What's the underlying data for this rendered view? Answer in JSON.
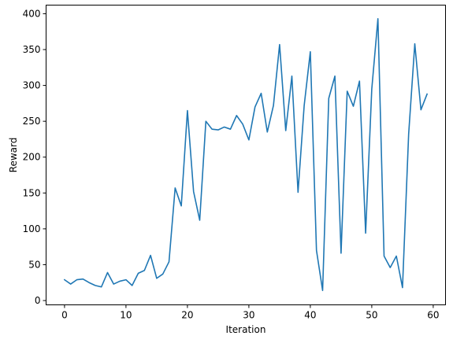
{
  "chart_data": {
    "type": "line",
    "xlabel": "Iteration",
    "ylabel": "Reward",
    "xlim": [
      -3,
      62
    ],
    "ylim": [
      -6,
      412
    ],
    "xticks": [
      0,
      10,
      20,
      30,
      40,
      50,
      60
    ],
    "yticks": [
      0,
      50,
      100,
      150,
      200,
      250,
      300,
      350,
      400
    ],
    "grid": false,
    "legend": "none",
    "series": [
      {
        "color": "#1f77b4",
        "x": [
          0,
          1,
          2,
          3,
          4,
          5,
          6,
          7,
          8,
          9,
          10,
          11,
          12,
          13,
          14,
          15,
          16,
          17,
          18,
          19,
          20,
          21,
          22,
          23,
          24,
          25,
          26,
          27,
          28,
          29,
          30,
          31,
          32,
          33,
          34,
          35,
          36,
          37,
          38,
          39,
          40,
          41,
          42,
          43,
          44,
          45,
          46,
          47,
          48,
          49,
          50,
          51,
          52,
          53,
          54,
          55,
          56,
          57,
          58,
          59
        ],
        "y": [
          29,
          23,
          29,
          30,
          25,
          21,
          19,
          39,
          23,
          27,
          29,
          21,
          38,
          42,
          63,
          31,
          37,
          54,
          157,
          132,
          265,
          152,
          112,
          250,
          239,
          238,
          242,
          239,
          258,
          246,
          224,
          270,
          289,
          235,
          272,
          357,
          237,
          313,
          151,
          272,
          347,
          70,
          14,
          282,
          313,
          66,
          292,
          271,
          306,
          94,
          295,
          393,
          62,
          46,
          62,
          18,
          232,
          358,
          266,
          288
        ]
      }
    ]
  }
}
